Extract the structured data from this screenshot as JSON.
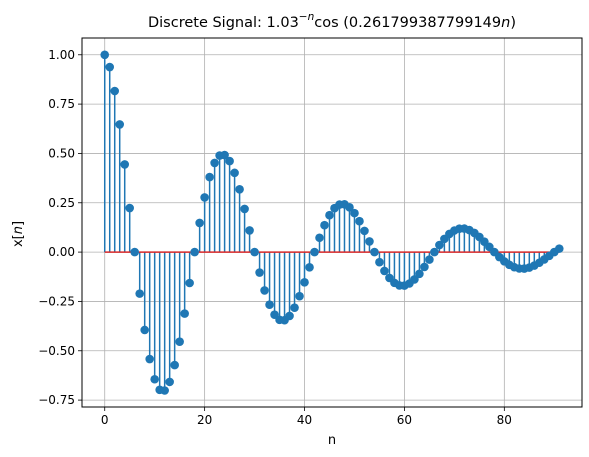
{
  "chart_data": {
    "type": "stem",
    "title_main": "Discrete Signal: 1.03",
    "title_exp": "−n",
    "title_tail": "cos (0.261799387799149",
    "title_var": "n",
    "title_close": ")",
    "xlabel": "n",
    "ylabel_pre": "x[",
    "ylabel_var": "n",
    "ylabel_post": "]",
    "formula": {
      "base": 1.03,
      "omega": 0.261799387799149,
      "n_start": 0,
      "n_end": 91
    },
    "xlim": [
      -4.55,
      95.55
    ],
    "ylim": [
      -0.785,
      1.085
    ],
    "xticks": [
      0,
      20,
      40,
      60,
      80
    ],
    "xtick_labels": [
      "0",
      "20",
      "40",
      "60",
      "80"
    ],
    "yticks": [
      -0.75,
      -0.5,
      -0.25,
      0.0,
      0.25,
      0.5,
      0.75,
      1.0
    ],
    "ytick_labels": [
      "−0.75",
      "−0.50",
      "−0.25",
      "0.00",
      "0.25",
      "0.50",
      "0.75",
      "1.00"
    ],
    "grid": true,
    "colors": {
      "marker": "#1f77b4",
      "stem": "#1f77b4",
      "baseline": "#d62728",
      "grid": "#b0b0b0"
    }
  }
}
